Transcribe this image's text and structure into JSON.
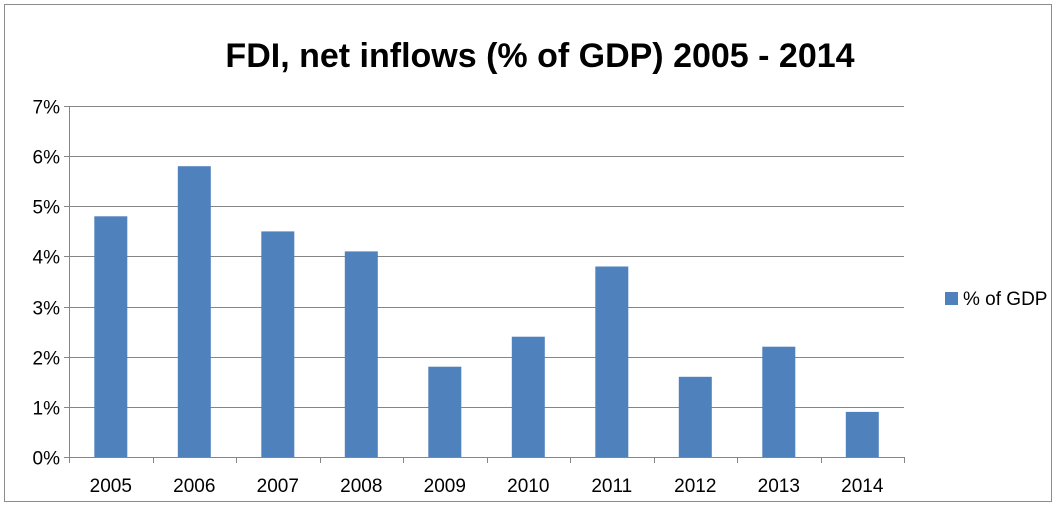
{
  "chart_data": {
    "type": "bar",
    "title": "FDI, net inflows (% of GDP) 2005 - 2014",
    "xlabel": "",
    "ylabel": "",
    "categories": [
      "2005",
      "2006",
      "2007",
      "2008",
      "2009",
      "2010",
      "2011",
      "2012",
      "2013",
      "2014"
    ],
    "series": [
      {
        "name": "% of GDP",
        "values": [
          4.8,
          5.8,
          4.5,
          4.1,
          1.8,
          2.4,
          3.8,
          1.6,
          2.2,
          0.9
        ],
        "color": "#4f81bd"
      }
    ],
    "ylim": [
      0,
      7
    ],
    "yticks": [
      0,
      1,
      2,
      3,
      4,
      5,
      6,
      7
    ],
    "ytick_labels": [
      "0%",
      "1%",
      "2%",
      "3%",
      "4%",
      "5%",
      "6%",
      "7%"
    ],
    "grid": true,
    "legend_position": "right"
  },
  "colors": {
    "bar": "#4f81bd",
    "gridline": "#868686",
    "axis": "#868686"
  }
}
